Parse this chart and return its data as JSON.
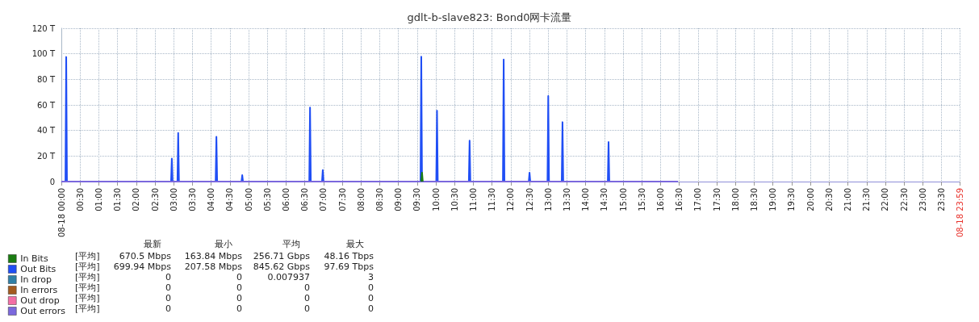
{
  "chart_data": {
    "type": "line",
    "title": "gdlt-b-slave823: Bond0网卡流量",
    "xlim": [
      0,
      23.9833
    ],
    "xticks": [
      {
        "value": 0,
        "label": "08-18 00:00"
      },
      {
        "value": 0.5,
        "label": "00:30"
      },
      {
        "value": 1,
        "label": "01:00"
      },
      {
        "value": 1.5,
        "label": "01:30"
      },
      {
        "value": 2,
        "label": "02:00"
      },
      {
        "value": 2.5,
        "label": "02:30"
      },
      {
        "value": 3,
        "label": "03:00"
      },
      {
        "value": 3.5,
        "label": "03:30"
      },
      {
        "value": 4,
        "label": "04:00"
      },
      {
        "value": 4.5,
        "label": "04:30"
      },
      {
        "value": 5,
        "label": "05:00"
      },
      {
        "value": 5.5,
        "label": "05:30"
      },
      {
        "value": 6,
        "label": "06:00"
      },
      {
        "value": 6.5,
        "label": "06:30"
      },
      {
        "value": 7,
        "label": "07:00"
      },
      {
        "value": 7.5,
        "label": "07:30"
      },
      {
        "value": 8,
        "label": "08:00"
      },
      {
        "value": 8.5,
        "label": "08:30"
      },
      {
        "value": 9,
        "label": "09:00"
      },
      {
        "value": 9.5,
        "label": "09:30"
      },
      {
        "value": 10,
        "label": "10:00"
      },
      {
        "value": 10.5,
        "label": "10:30"
      },
      {
        "value": 11,
        "label": "11:00"
      },
      {
        "value": 11.5,
        "label": "11:30"
      },
      {
        "value": 12,
        "label": "12:00"
      },
      {
        "value": 12.5,
        "label": "12:30"
      },
      {
        "value": 13,
        "label": "13:00"
      },
      {
        "value": 13.5,
        "label": "13:30"
      },
      {
        "value": 14,
        "label": "14:00"
      },
      {
        "value": 14.5,
        "label": "14:30"
      },
      {
        "value": 15,
        "label": "15:00"
      },
      {
        "value": 15.5,
        "label": "15:30"
      },
      {
        "value": 16,
        "label": "16:00"
      },
      {
        "value": 16.5,
        "label": "16:30"
      },
      {
        "value": 17,
        "label": "17:00"
      },
      {
        "value": 17.5,
        "label": "17:30"
      },
      {
        "value": 18,
        "label": "18:00"
      },
      {
        "value": 18.5,
        "label": "18:30"
      },
      {
        "value": 19,
        "label": "19:00"
      },
      {
        "value": 19.5,
        "label": "19:30"
      },
      {
        "value": 20,
        "label": "20:00"
      },
      {
        "value": 20.5,
        "label": "20:30"
      },
      {
        "value": 21,
        "label": "21:00"
      },
      {
        "value": 21.5,
        "label": "21:30"
      },
      {
        "value": 22,
        "label": "22:00"
      },
      {
        "value": 22.5,
        "label": "22:30"
      },
      {
        "value": 23,
        "label": "23:00"
      },
      {
        "value": 23.5,
        "label": "23:30"
      },
      {
        "value": 23.9833,
        "label": "08-18 23:59"
      }
    ],
    "ylim": [
      0,
      120
    ],
    "yticks": [
      {
        "value": 0,
        "label": "0"
      },
      {
        "value": 20,
        "label": "20 T"
      },
      {
        "value": 40,
        "label": "40 T"
      },
      {
        "value": 60,
        "label": "60 T"
      },
      {
        "value": 80,
        "label": "80 T"
      },
      {
        "value": 100,
        "label": "100 T"
      },
      {
        "value": 120,
        "label": "120 T"
      }
    ],
    "series": [
      {
        "name": "In Bits",
        "color": "#1a7c11",
        "x": [
          9.61,
          9.63,
          9.65
        ],
        "values": [
          0,
          7,
          0
        ]
      },
      {
        "name": "Out Bits",
        "color": "#1f4ef5",
        "x": [
          0,
          0.11,
          0.13,
          0.15,
          2.93,
          2.95,
          2.97,
          3.1,
          3.12,
          3.14,
          4.12,
          4.14,
          4.16,
          4.81,
          4.83,
          4.85,
          6.62,
          6.64,
          6.66,
          6.96,
          6.98,
          7.0,
          9.59,
          9.61,
          9.63,
          10.01,
          10.03,
          10.05,
          10.88,
          10.9,
          10.92,
          11.79,
          11.81,
          11.83,
          12.48,
          12.5,
          12.52,
          12.98,
          13.0,
          13.02,
          13.36,
          13.38,
          13.4,
          14.59,
          14.61,
          14.63,
          16.46
        ],
        "values": [
          0,
          0,
          97.5,
          0,
          0,
          18,
          0,
          0,
          38,
          0,
          0,
          35,
          0,
          0,
          5,
          0,
          0,
          58,
          0,
          0,
          9,
          0,
          0,
          97.7,
          0,
          0,
          55.5,
          0,
          0,
          32,
          0,
          0,
          95.5,
          0,
          0,
          7,
          0,
          0,
          67,
          0,
          0,
          46.5,
          0,
          0,
          31,
          0,
          0
        ]
      },
      {
        "name": "In drop",
        "color": "#2f7fa6"
      },
      {
        "name": "In errors",
        "color": "#a35a1e"
      },
      {
        "name": "Out drop",
        "color": "#f36ea5"
      },
      {
        "name": "Out errors",
        "color": "#7b68dd",
        "x": [
          0,
          16.46
        ],
        "values": [
          0,
          0
        ]
      }
    ],
    "annotations": [
      "最新",
      "最小",
      "平均",
      "最大",
      "[平均]",
      "670.5 Mbps",
      "163.84 Mbps",
      "256.71 Gbps",
      "48.16 Tbps",
      "[平均]",
      "699.94 Mbps",
      "207.58 Mbps",
      "845.62 Gbps",
      "97.69 Tbps",
      "[平均]",
      "0",
      "0",
      "0.007937",
      "3",
      "[平均]",
      "0",
      "0",
      "0",
      "0",
      "[平均]",
      "0",
      "0",
      "0",
      "0",
      "[平均]",
      "0",
      "0",
      "0",
      "0"
    ],
    "grid": true,
    "legend": "bottom left",
    "marker": "none",
    "line_style": "solid"
  }
}
